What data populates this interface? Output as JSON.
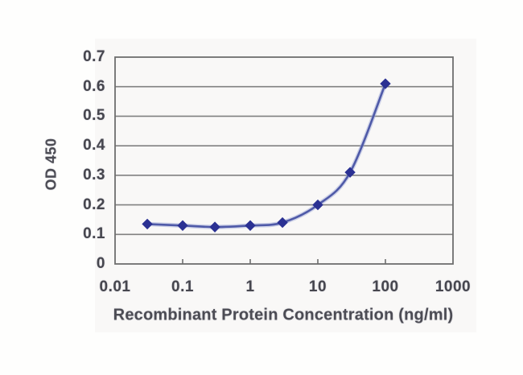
{
  "chart_data": {
    "type": "line",
    "title": "",
    "xlabel": "Recombinant Protein Concentration (ng/ml)",
    "ylabel": "OD 450",
    "xscale": "log",
    "xlim": [
      0.01,
      1000
    ],
    "ylim": [
      0,
      0.7
    ],
    "xticks": [
      "0.01",
      "0.1",
      "1",
      "10",
      "100",
      "1000"
    ],
    "yticks": [
      "0.7",
      "0.6",
      "0.5",
      "0.4",
      "0.3",
      "0.2",
      "0.1",
      "0"
    ],
    "grid": "horizontal",
    "legend": "none",
    "series": [
      {
        "name": "OD 450",
        "x": [
          0.03,
          0.1,
          0.3,
          1,
          3,
          10,
          30,
          100
        ],
        "y": [
          0.135,
          0.13,
          0.125,
          0.13,
          0.14,
          0.2,
          0.31,
          0.61
        ],
        "marker": "diamond",
        "smooth": true
      }
    ],
    "colors": {
      "line": "#4f5aa8",
      "line_halo": "#9aa3d4",
      "marker": "#2b3193",
      "grid": "#818181",
      "axis_border": "#6e6e6e",
      "text": "#46464e"
    }
  }
}
